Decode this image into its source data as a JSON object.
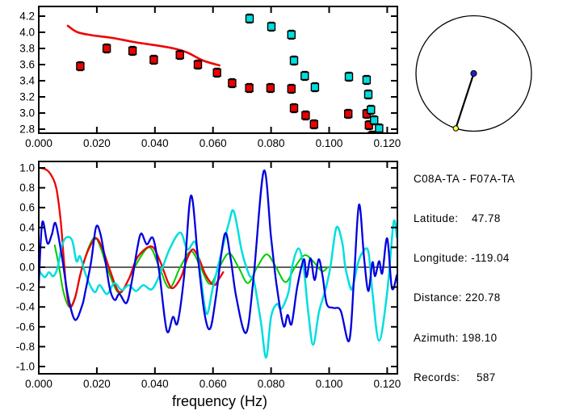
{
  "info_panel": {
    "station_pair": "C08A-TA - F07A-TA",
    "lines": [
      "Latitude:    47.78",
      "Longitude: -119.04",
      "Distance: 220.78",
      "Azimuth: 198.10",
      "Records:     587"
    ],
    "fields": {
      "latitude": "47.78",
      "longitude": "-119.04",
      "distance": "220.78",
      "azimuth": "198.10",
      "records": "587"
    }
  },
  "colors": {
    "red": "#ee0000",
    "green": "#00cc00",
    "blue": "#0000e0",
    "cyan": "#00dede",
    "marker_blue": "#2222bb",
    "marker_yellow": "#ffff44",
    "axis": "#000000"
  },
  "chart_data": [
    {
      "type": "scatter",
      "title": "",
      "xlabel": "",
      "ylabel": "",
      "xlim": [
        0,
        0.1235
      ],
      "ylim": [
        2.75,
        4.32
      ],
      "grid": false,
      "x_ticks": {
        "values": [
          0.0,
          0.02,
          0.04,
          0.06,
          0.08,
          0.1,
          0.12
        ],
        "labels": [
          "0.000",
          "0.020",
          "0.040",
          "0.060",
          "0.080",
          "0.100",
          "0.120"
        ]
      },
      "y_ticks": {
        "values": [
          4.2,
          4.0,
          3.8,
          3.6,
          3.4,
          3.2,
          3.0,
          2.8
        ],
        "labels": [
          "4.2",
          "4.0",
          "3.8",
          "3.6",
          "3.4",
          "3.2",
          "3.0",
          "2.8"
        ]
      },
      "series": [
        {
          "name": "reference-dispersion-curve",
          "kind": "line",
          "color": "#ee0000",
          "width": 2.6,
          "points": [
            [
              0.01,
              4.08
            ],
            [
              0.0134,
              4.0
            ],
            [
              0.019,
              3.96
            ],
            [
              0.0254,
              3.93
            ],
            [
              0.0327,
              3.88
            ],
            [
              0.0419,
              3.83
            ],
            [
              0.0465,
              3.8
            ],
            [
              0.0511,
              3.75
            ],
            [
              0.0566,
              3.65
            ],
            [
              0.0622,
              3.59
            ]
          ]
        },
        {
          "name": "red-measurements",
          "kind": "squares",
          "color": "#ee0000",
          "error": 0.055,
          "points": [
            [
              0.0143,
              3.58
            ],
            [
              0.0234,
              3.8
            ],
            [
              0.0323,
              3.77
            ],
            [
              0.0396,
              3.66
            ],
            [
              0.0486,
              3.72
            ],
            [
              0.0548,
              3.6
            ],
            [
              0.0614,
              3.5
            ],
            [
              0.0666,
              3.37
            ],
            [
              0.0725,
              3.31
            ],
            [
              0.0798,
              3.31
            ],
            [
              0.087,
              3.3
            ],
            [
              0.0879,
              3.06
            ],
            [
              0.0919,
              2.97
            ],
            [
              0.0948,
              2.86
            ],
            [
              0.1066,
              2.99
            ],
            [
              0.1129,
              2.99
            ],
            [
              0.1137,
              2.85
            ],
            [
              0.1148,
              2.72
            ]
          ]
        },
        {
          "name": "cyan-measurements",
          "kind": "squares",
          "color": "#00dede",
          "error": 0.055,
          "points": [
            [
              0.0726,
              4.17
            ],
            [
              0.0801,
              4.07
            ],
            [
              0.087,
              3.97
            ],
            [
              0.0879,
              3.65
            ],
            [
              0.0916,
              3.46
            ],
            [
              0.0951,
              3.32
            ],
            [
              0.1068,
              3.45
            ],
            [
              0.1129,
              3.41
            ],
            [
              0.1135,
              3.23
            ],
            [
              0.1144,
              3.04
            ],
            [
              0.1155,
              2.91
            ],
            [
              0.1172,
              2.81
            ]
          ]
        }
      ]
    },
    {
      "type": "line",
      "title": "",
      "xlabel": "frequency (Hz)",
      "ylabel": "",
      "xlim": [
        0,
        0.1235
      ],
      "ylim": [
        -1.073,
        1.065
      ],
      "grid": false,
      "zero_line": true,
      "x_ticks": {
        "values": [
          0.0,
          0.02,
          0.04,
          0.06,
          0.08,
          0.1,
          0.12
        ],
        "labels": [
          "0.000",
          "0.020",
          "0.040",
          "0.060",
          "0.080",
          "0.100",
          "0.120"
        ]
      },
      "y_ticks": {
        "values": [
          1.0,
          0.8,
          0.6,
          0.4,
          0.2,
          0.0,
          -0.2,
          -0.4,
          -0.6,
          -0.8,
          -1.0
        ],
        "labels": [
          "1.0",
          "0.8",
          "0.6",
          "0.4",
          "0.2",
          "0.0",
          "-0.2",
          "-0.4",
          "-0.6",
          "-0.8",
          "-1.0"
        ]
      },
      "series": [
        {
          "name": "green-waveform",
          "kind": "line",
          "color": "#00cc00",
          "width": 2.0,
          "points": [
            [
              0.0055,
              0.22
            ],
            [
              0.007,
              0.0
            ],
            [
              0.0085,
              -0.25
            ],
            [
              0.0105,
              -0.4
            ],
            [
              0.0125,
              -0.3
            ],
            [
              0.015,
              0.0
            ],
            [
              0.0175,
              0.22
            ],
            [
              0.0195,
              0.3
            ],
            [
              0.0215,
              0.18
            ],
            [
              0.0235,
              0.0
            ],
            [
              0.0275,
              -0.26
            ],
            [
              0.031,
              -0.12
            ],
            [
              0.033,
              0.0
            ],
            [
              0.038,
              0.2
            ],
            [
              0.0415,
              0.0
            ],
            [
              0.045,
              -0.21
            ],
            [
              0.0487,
              0.0
            ],
            [
              0.0525,
              0.16
            ],
            [
              0.0557,
              0.0
            ],
            [
              0.059,
              -0.17
            ],
            [
              0.0622,
              0.0
            ],
            [
              0.0655,
              0.14
            ],
            [
              0.0688,
              0.0
            ],
            [
              0.072,
              -0.16
            ],
            [
              0.0752,
              0.0
            ],
            [
              0.0785,
              0.13
            ],
            [
              0.0817,
              0.0
            ],
            [
              0.085,
              -0.15
            ],
            [
              0.0882,
              0.0
            ],
            [
              0.0915,
              0.12
            ],
            [
              0.0945,
              0.06
            ],
            [
              0.0975,
              -0.04
            ],
            [
              0.0995,
              0.0
            ]
          ]
        },
        {
          "name": "red-waveform",
          "kind": "line",
          "color": "#ee0000",
          "width": 2.3,
          "points": [
            [
              0.0,
              1.0
            ],
            [
              0.002,
              0.99
            ],
            [
              0.004,
              0.94
            ],
            [
              0.006,
              0.8
            ],
            [
              0.0075,
              0.48
            ],
            [
              0.0085,
              0.12
            ],
            [
              0.0095,
              -0.22
            ],
            [
              0.0107,
              -0.4
            ],
            [
              0.0125,
              -0.31
            ],
            [
              0.0145,
              -0.05
            ],
            [
              0.017,
              0.17
            ],
            [
              0.0197,
              0.29
            ],
            [
              0.022,
              0.18
            ],
            [
              0.0245,
              -0.03
            ],
            [
              0.0277,
              -0.25
            ],
            [
              0.031,
              -0.12
            ],
            [
              0.034,
              0.1
            ],
            [
              0.0387,
              0.21
            ],
            [
              0.0415,
              0.08
            ],
            [
              0.0445,
              -0.15
            ],
            [
              0.0462,
              -0.21
            ],
            [
              0.049,
              -0.1
            ],
            [
              0.051,
              0.08
            ],
            [
              0.053,
              0.18
            ],
            [
              0.055,
              0.1
            ],
            [
              0.0575,
              -0.08
            ],
            [
              0.0603,
              -0.18
            ],
            [
              0.062,
              -0.12
            ],
            [
              0.0635,
              -0.05
            ]
          ]
        },
        {
          "name": "cyan-waveform",
          "kind": "line",
          "color": "#00dede",
          "width": 2.5,
          "points": [
            [
              0.0,
              -0.03
            ],
            [
              0.002,
              -0.1
            ],
            [
              0.0035,
              -0.05
            ],
            [
              0.005,
              -0.09
            ],
            [
              0.0065,
              0.0
            ],
            [
              0.008,
              0.22
            ],
            [
              0.0095,
              0.3
            ],
            [
              0.0115,
              0.27
            ],
            [
              0.013,
              0.06
            ],
            [
              0.0142,
              0.11
            ],
            [
              0.016,
              -0.06
            ],
            [
              0.018,
              -0.2
            ],
            [
              0.0195,
              -0.25
            ],
            [
              0.021,
              -0.18
            ],
            [
              0.0235,
              -0.27
            ],
            [
              0.026,
              -0.16
            ],
            [
              0.0285,
              -0.23
            ],
            [
              0.031,
              -0.18
            ],
            [
              0.0335,
              -0.24
            ],
            [
              0.036,
              -0.18
            ],
            [
              0.039,
              -0.22
            ],
            [
              0.042,
              -0.05
            ],
            [
              0.045,
              0.18
            ],
            [
              0.0487,
              0.35
            ],
            [
              0.0512,
              0.18
            ],
            [
              0.054,
              0.25
            ],
            [
              0.0558,
              -0.1
            ],
            [
              0.0578,
              -0.47
            ],
            [
              0.06,
              -0.2
            ],
            [
              0.0625,
              0.1
            ],
            [
              0.0655,
              0.45
            ],
            [
              0.0672,
              0.56
            ],
            [
              0.07,
              0.15
            ],
            [
              0.0725,
              -0.08
            ],
            [
              0.0741,
              -0.14
            ],
            [
              0.0765,
              -0.55
            ],
            [
              0.0783,
              -0.91
            ],
            [
              0.08,
              -0.5
            ],
            [
              0.082,
              -0.37
            ],
            [
              0.0835,
              -0.42
            ],
            [
              0.086,
              -0.25
            ],
            [
              0.0872,
              0.0
            ],
            [
              0.0894,
              0.19
            ],
            [
              0.0912,
              0.0
            ],
            [
              0.0928,
              -0.45
            ],
            [
              0.0945,
              -0.78
            ],
            [
              0.0965,
              -0.45
            ],
            [
              0.0986,
              -0.24
            ],
            [
              0.1004,
              0.0
            ],
            [
              0.1025,
              0.4
            ],
            [
              0.1045,
              0.25
            ],
            [
              0.1056,
              0.0
            ],
            [
              0.1075,
              -0.22
            ],
            [
              0.1085,
              -0.15
            ],
            [
              0.11,
              0.05
            ],
            [
              0.1115,
              0.15
            ],
            [
              0.1135,
              0.16
            ],
            [
              0.1149,
              -0.25
            ],
            [
              0.1172,
              -0.74
            ],
            [
              0.12,
              -0.25
            ],
            [
              0.1222,
              0.45
            ],
            [
              0.1233,
              0.3
            ]
          ]
        },
        {
          "name": "blue-waveform",
          "kind": "line",
          "color": "#0000e0",
          "width": 2.3,
          "points": [
            [
              0.0,
              -0.18
            ],
            [
              0.0012,
              0.45
            ],
            [
              0.003,
              0.24
            ],
            [
              0.0045,
              0.33
            ],
            [
              0.0058,
              0.44
            ],
            [
              0.008,
              0.1
            ],
            [
              0.01,
              -0.28
            ],
            [
              0.0125,
              -0.53
            ],
            [
              0.015,
              -0.38
            ],
            [
              0.016,
              -0.25
            ],
            [
              0.018,
              0.05
            ],
            [
              0.0197,
              0.4
            ],
            [
              0.0212,
              0.34
            ],
            [
              0.023,
              0.05
            ],
            [
              0.0245,
              -0.22
            ],
            [
              0.0262,
              -0.33
            ],
            [
              0.0278,
              -0.27
            ],
            [
              0.0302,
              -0.36
            ],
            [
              0.032,
              -0.15
            ],
            [
              0.034,
              0.2
            ],
            [
              0.0353,
              0.34
            ],
            [
              0.0372,
              0.23
            ],
            [
              0.0394,
              0.29
            ],
            [
              0.0415,
              -0.05
            ],
            [
              0.0441,
              -0.64
            ],
            [
              0.0462,
              -0.5
            ],
            [
              0.0478,
              -0.56
            ],
            [
              0.05,
              -0.1
            ],
            [
              0.0524,
              0.72
            ],
            [
              0.0548,
              0.1
            ],
            [
              0.057,
              -0.45
            ],
            [
              0.059,
              -0.62
            ],
            [
              0.061,
              -0.3
            ],
            [
              0.064,
              0.33
            ],
            [
              0.066,
              0.1
            ],
            [
              0.068,
              -0.3
            ],
            [
              0.0714,
              -0.66
            ],
            [
              0.074,
              -0.1
            ],
            [
              0.0775,
              0.97
            ],
            [
              0.08,
              0.3
            ],
            [
              0.082,
              -0.2
            ],
            [
              0.0843,
              -0.59
            ],
            [
              0.0857,
              -0.48
            ],
            [
              0.0871,
              -0.57
            ],
            [
              0.089,
              -0.2
            ],
            [
              0.0913,
              0.08
            ],
            [
              0.0922,
              -0.1
            ],
            [
              0.0936,
              0.09
            ],
            [
              0.095,
              -0.13
            ],
            [
              0.0964,
              0.08
            ],
            [
              0.0978,
              -0.1
            ],
            [
              0.0992,
              -0.37
            ],
            [
              0.1015,
              -0.41
            ],
            [
              0.104,
              -0.44
            ],
            [
              0.1069,
              -0.74
            ],
            [
              0.1086,
              -0.1
            ],
            [
              0.1103,
              0.63
            ],
            [
              0.112,
              0.1
            ],
            [
              0.1135,
              -0.24
            ],
            [
              0.1149,
              0.05
            ],
            [
              0.1158,
              -0.09
            ],
            [
              0.1172,
              0.06
            ],
            [
              0.1183,
              -0.06
            ],
            [
              0.12,
              0.29
            ],
            [
              0.1216,
              -0.21
            ],
            [
              0.1233,
              -0.08
            ]
          ]
        }
      ]
    },
    {
      "type": "azimuth-diagram",
      "azimuth_deg": 198.1,
      "center_marker": "blue-dot",
      "edge_marker": "yellow-dot"
    }
  ]
}
